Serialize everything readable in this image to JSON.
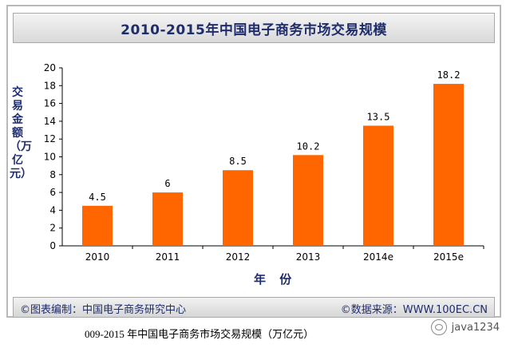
{
  "chart_data": {
    "type": "bar",
    "title": "2010-2015年中国电子商务市场交易规模",
    "categories": [
      "2010",
      "2011",
      "2012",
      "2013",
      "2014e",
      "2015e"
    ],
    "values": [
      4.5,
      6,
      8.5,
      10.2,
      13.5,
      18.2
    ],
    "value_labels": [
      "4.5",
      "6",
      "8.5",
      "10.2",
      "13.5",
      "18.2"
    ],
    "xlabel": "年 份",
    "ylabel": "交易金额（万亿元）",
    "ylim": [
      0,
      20
    ],
    "yticks": [
      0,
      2,
      4,
      6,
      8,
      10,
      12,
      14,
      16,
      18,
      20
    ],
    "grid": false,
    "bar_color": "#ff6600"
  },
  "footer": {
    "source_left": "©图表编制：中国电子商务研究中心",
    "source_right": "©数据来源：WWW.100EC.CN"
  },
  "caption": "009-2015 年中国电子商务市场交易规模（万亿元）",
  "watermark": "java1234"
}
